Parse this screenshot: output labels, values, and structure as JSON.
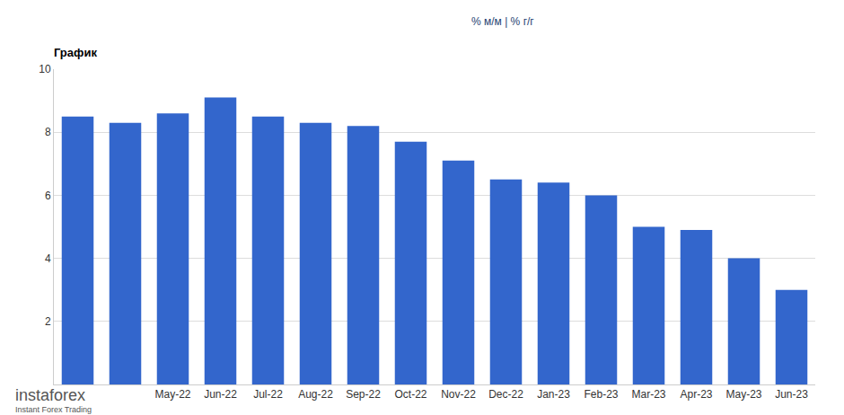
{
  "chart_data": {
    "type": "bar",
    "title": "График",
    "subtitle": "% м/м | % г/г",
    "categories": [
      null,
      null,
      "May-22",
      "Jun-22",
      "Jul-22",
      "Aug-22",
      "Sep-22",
      "Oct-22",
      "Nov-22",
      "Dec-22",
      "Jan-23",
      "Feb-23",
      "Mar-23",
      "Apr-23",
      "May-23",
      "Jun-23"
    ],
    "values": [
      8.5,
      8.3,
      8.6,
      9.1,
      8.5,
      8.3,
      8.2,
      7.7,
      7.1,
      6.5,
      6.4,
      6.0,
      5.0,
      4.9,
      4.0,
      3.0
    ],
    "color": "#3366cc",
    "ylim": [
      0,
      10
    ],
    "yticks": [
      2,
      4,
      6,
      8,
      10
    ],
    "grid": true,
    "annotations": [
      "instaforex",
      "Instant Forex Trading"
    ]
  }
}
